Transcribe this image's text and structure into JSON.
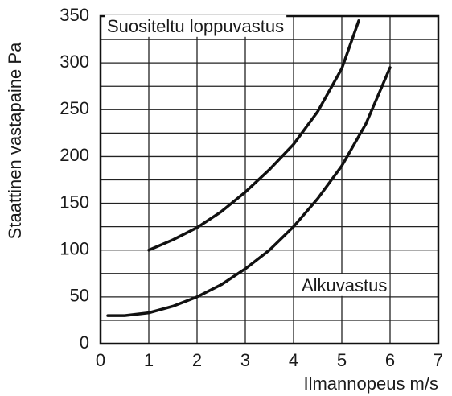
{
  "chart_data": {
    "type": "line",
    "x_label": "Ilmannopeus m/s",
    "y_label": "Staattinen vastapaine Pa",
    "xlim": [
      0,
      7
    ],
    "xticks": [
      0,
      1,
      2,
      3,
      4,
      5,
      6,
      7
    ],
    "ylim": [
      0,
      350
    ],
    "yticks": [
      0,
      50,
      100,
      150,
      200,
      250,
      300,
      350
    ],
    "minor_yticks": [
      25,
      75,
      125,
      175,
      225,
      275,
      325
    ],
    "grid": true,
    "series": [
      {
        "name": "Suositeltu loppuvastus",
        "color": "#111111",
        "x": [
          1,
          1.5,
          2,
          2.5,
          3,
          3.5,
          4,
          4.5,
          5,
          5.35
        ],
        "values": [
          100,
          111,
          124,
          141,
          162,
          186,
          213,
          248,
          294,
          345
        ]
      },
      {
        "name": "Alkuvastus",
        "color": "#111111",
        "x": [
          0.15,
          0.5,
          1,
          1.5,
          2,
          2.5,
          3,
          3.5,
          4,
          4.5,
          5,
          5.5,
          6
        ],
        "values": [
          30,
          30,
          33,
          40,
          50,
          63,
          80,
          100,
          125,
          155,
          190,
          235,
          295
        ]
      }
    ]
  }
}
